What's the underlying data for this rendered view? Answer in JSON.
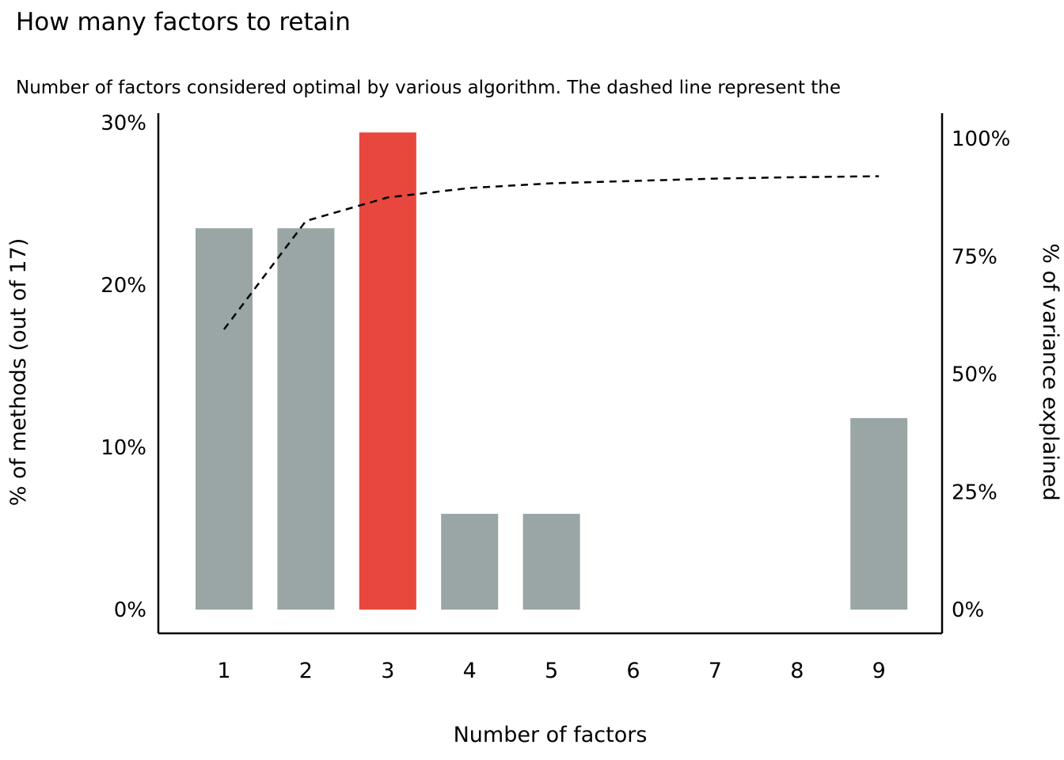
{
  "chart_data": {
    "type": "bar",
    "title": "How many factors to retain",
    "subtitle": "Number of factors considered optimal by various algorithm. The dashed line represent the",
    "xlabel": "Number of factors",
    "ylabel_left": "% of methods (out of 17)",
    "ylabel_right": "% of variance explained",
    "categories": [
      "1",
      "2",
      "3",
      "4",
      "5",
      "6",
      "7",
      "8",
      "9"
    ],
    "bars": {
      "name": "% of methods (out of 17)",
      "values": [
        23.5,
        23.5,
        29.4,
        5.9,
        5.9,
        0,
        0,
        0,
        11.8
      ],
      "highlight_index": 2,
      "bar_color": "#9aa5a5",
      "highlight_color": "#e8473d"
    },
    "line": {
      "name": "% of variance explained",
      "values": [
        59.5,
        82.5,
        87.5,
        89.5,
        90.5,
        91.0,
        91.5,
        91.8,
        92.0
      ],
      "style": "dashed",
      "color": "#000000"
    },
    "left_axis": {
      "ticks": [
        0,
        10,
        20,
        30
      ],
      "tick_labels": [
        "0%",
        "10%",
        "20%",
        "30%"
      ],
      "min": 0,
      "max": 30
    },
    "right_axis": {
      "ticks": [
        0,
        25,
        50,
        75,
        100
      ],
      "tick_labels": [
        "0%",
        "25%",
        "50%",
        "75%",
        "100%"
      ],
      "min": 0,
      "max": 100
    },
    "legend_position": "none",
    "grid": false
  }
}
